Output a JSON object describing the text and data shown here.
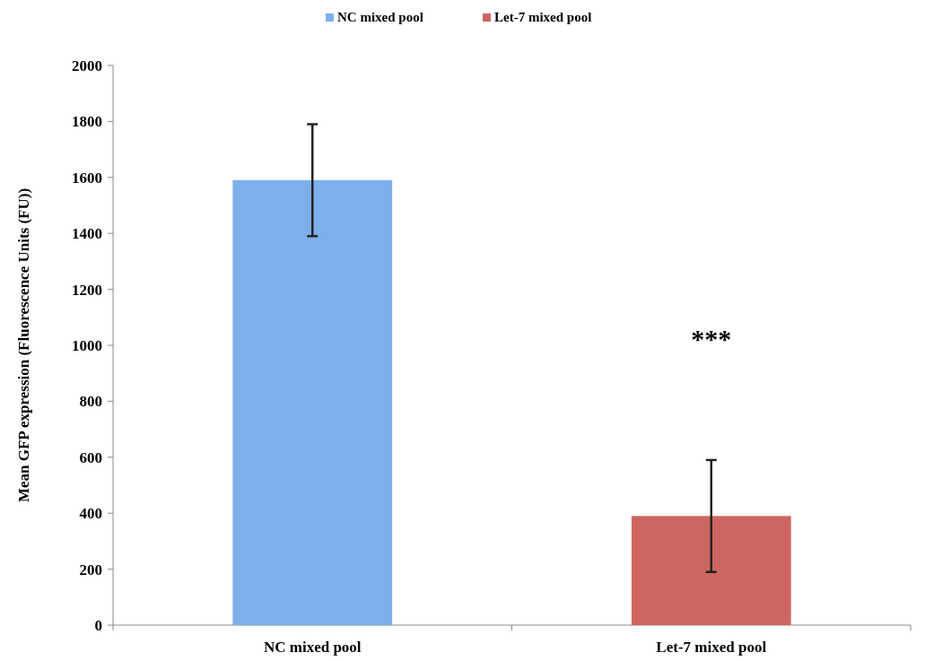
{
  "chart_data": {
    "type": "bar",
    "ylabel": "Mean GFP expression (Fluorescence Units (FU))",
    "categories": [
      "NC mixed pool",
      "Let-7 mixed pool"
    ],
    "series": [
      {
        "name": "NC mixed pool",
        "color": "#7db0ea",
        "values": [
          1590,
          null
        ],
        "errors": [
          200,
          null
        ]
      },
      {
        "name": "Let-7 mixed pool",
        "color": "#cd6660",
        "values": [
          null,
          390
        ],
        "errors": [
          null,
          200
        ]
      }
    ],
    "ylim": [
      0,
      2000
    ],
    "yticks": [
      0,
      200,
      400,
      600,
      800,
      1000,
      1200,
      1400,
      1600,
      1800,
      2000
    ],
    "legend": "top",
    "annotations": [
      "***"
    ]
  }
}
